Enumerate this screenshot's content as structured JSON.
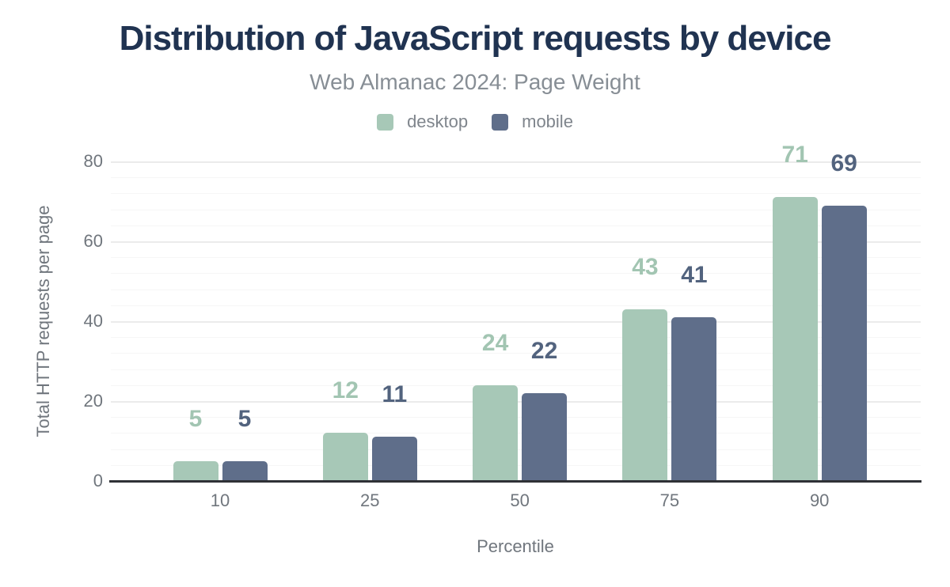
{
  "header": {
    "title": "Distribution of JavaScript requests by device",
    "subtitle": "Web Almanac 2024: Page Weight"
  },
  "chart_data": {
    "type": "bar",
    "title": "Distribution of JavaScript requests by device",
    "subtitle": "Web Almanac 2024: Page Weight",
    "categories": [
      "10",
      "25",
      "50",
      "75",
      "90"
    ],
    "series": [
      {
        "name": "desktop",
        "color": "#a7c8b7",
        "label_color": "#a2c5b2",
        "values": [
          5,
          12,
          24,
          43,
          71
        ]
      },
      {
        "name": "mobile",
        "color": "#5f6e8a",
        "label_color": "#52637e",
        "values": [
          5,
          11,
          22,
          41,
          69
        ]
      }
    ],
    "xlabel": "Percentile",
    "ylabel": "Total HTTP requests per page",
    "ylim": [
      0,
      80
    ],
    "yticks": [
      0,
      20,
      40,
      60,
      80
    ],
    "grid": true,
    "minor_grid_step": 4,
    "legend_position": "top",
    "bar_value_labels": true
  },
  "style": {
    "title_color": "#203351",
    "subtitle_color": "#878e95",
    "legend_text_color": "#7f858c",
    "tick_text_color": "#70767d",
    "axis_line_color": "#2f3136",
    "grid_major_color": "#ebebeb",
    "grid_minor_color": "#f6f6f6",
    "background_color": "#ffffff"
  }
}
